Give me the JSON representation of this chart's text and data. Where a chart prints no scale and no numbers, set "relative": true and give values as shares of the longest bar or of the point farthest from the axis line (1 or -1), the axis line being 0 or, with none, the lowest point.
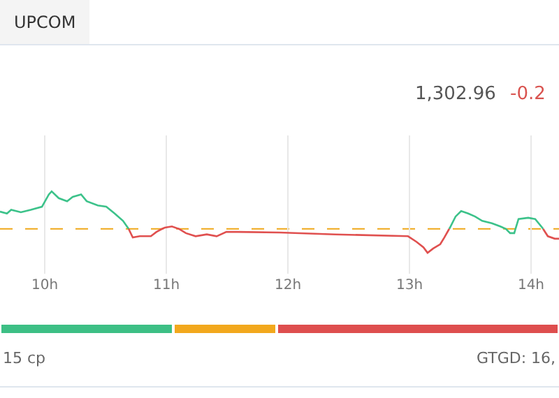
{
  "chart_data": [
    {
      "type": "line",
      "relative": true,
      "annotations": [
        "UPCOM",
        "1,302.96",
        "-0.2"
      ],
      "x": [
        9.632,
        9.689,
        9.724,
        9.804,
        9.885,
        9.977,
        10.034,
        10.057,
        10.115,
        10.184,
        10.23,
        10.299,
        10.345,
        10.437,
        10.506,
        10.575,
        10.644,
        10.69,
        10.724,
        10.782,
        10.873,
        10.919,
        10.965,
        10.988,
        11.046,
        11.103,
        11.161,
        11.241,
        11.333,
        11.414,
        11.494,
        11.586,
        11.931,
        12.391,
        12.988,
        13.057,
        13.115,
        13.149,
        13.195,
        13.253,
        13.287,
        13.327,
        13.333,
        13.379,
        13.425,
        13.483,
        13.54,
        13.598,
        13.678,
        13.747,
        13.793,
        13.828,
        13.862,
        13.872,
        13.897,
        13.977,
        14.034,
        14.092,
        14.099,
        14.138,
        14.195,
        14.23
      ],
      "series": [
        {
          "color": "#3cc28a",
          "values": [
            0.67,
            0.64,
            0.7,
            0.66,
            0.7,
            0.75,
            0.95,
            1.0,
            0.89,
            0.84,
            0.91,
            0.95,
            0.84,
            0.77,
            0.75,
            0.64,
            0.52,
            0.39,
            null,
            null,
            null,
            null,
            null,
            null,
            null,
            null,
            null,
            null,
            null,
            null,
            null,
            null,
            null,
            null,
            null,
            null,
            null,
            null,
            null,
            null,
            null,
            0.39,
            0.41,
            0.59,
            0.68,
            0.64,
            0.59,
            0.52,
            0.48,
            0.43,
            0.39,
            0.32,
            0.32,
            0.39,
            0.55,
            0.57,
            0.55,
            0.41,
            0.39,
            null,
            null,
            null
          ]
        },
        {
          "color": "#e0504f",
          "values": [
            null,
            null,
            null,
            null,
            null,
            null,
            null,
            null,
            null,
            null,
            null,
            null,
            null,
            null,
            null,
            null,
            null,
            0.39,
            0.25,
            0.27,
            0.27,
            0.34,
            0.39,
            0.41,
            0.43,
            0.39,
            0.32,
            0.27,
            0.3,
            0.27,
            0.34,
            0.34,
            0.33,
            0.3,
            0.27,
            0.18,
            0.09,
            0.0,
            0.07,
            0.14,
            0.25,
            0.39,
            null,
            null,
            null,
            null,
            null,
            null,
            null,
            null,
            null,
            null,
            null,
            null,
            null,
            null,
            null,
            null,
            0.39,
            0.27,
            0.23,
            0.23
          ]
        }
      ],
      "xlim": [
        9.632,
        14.23
      ],
      "xticks": [
        {
          "value": 10,
          "label": "10h"
        },
        {
          "value": 11,
          "label": "11h"
        },
        {
          "value": 12,
          "label": "12h"
        },
        {
          "value": 13,
          "label": "13h"
        },
        {
          "value": 14,
          "label": "14h"
        }
      ],
      "ref_lines": [
        {
          "axis": "y",
          "value": 0.39,
          "color": "#f0a81a",
          "line_style": "dashed"
        }
      ],
      "grid": "x",
      "marker": "none",
      "line_style": "solid"
    },
    {
      "type": "bar",
      "orientation": "horizontal",
      "stacked": true,
      "relative": true,
      "categories": [
        null
      ],
      "annotations": [
        "15 cp",
        "GTGD: 16,"
      ],
      "series": [
        {
          "color": "#3dbf85",
          "values": [
            0.31
          ]
        },
        {
          "color": "#f2a81d",
          "values": [
            0.185
          ]
        },
        {
          "color": "#de4e4e",
          "values": [
            0.505
          ]
        }
      ]
    }
  ]
}
